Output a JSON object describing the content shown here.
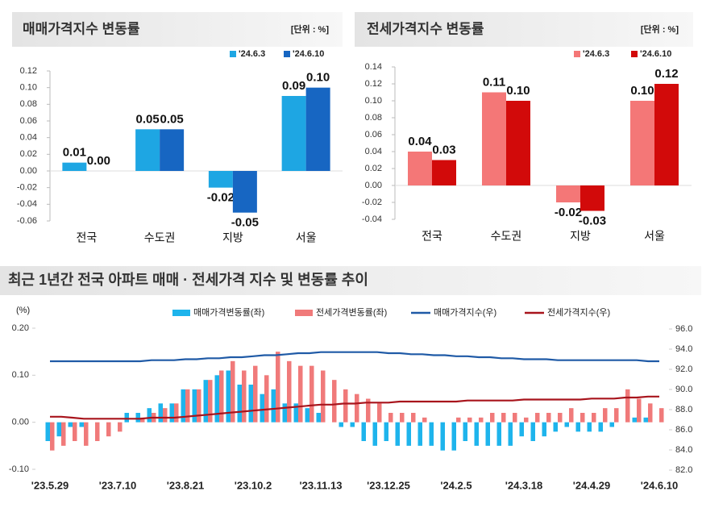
{
  "chart_data": [
    {
      "type": "bar",
      "title": "매매가격지수 변동률",
      "unit": "[단위 : %]",
      "categories": [
        "전국",
        "수도권",
        "지방",
        "서울"
      ],
      "series": [
        {
          "name": "'24.6.3",
          "color": "#1ea6e3",
          "values": [
            0.01,
            0.05,
            -0.02,
            0.09
          ],
          "value_labels": [
            "0.01",
            "0.05",
            "-0.02",
            "0.09"
          ]
        },
        {
          "name": "'24.6.10",
          "color": "#1766c2",
          "values": [
            0,
            0.05,
            -0.05,
            0.1
          ],
          "value_labels": [
            "0.00",
            "0.05",
            "-0.05",
            "0.10"
          ]
        }
      ],
      "ylim": [
        -0.06,
        0.12
      ],
      "yticks": [
        0.12,
        {
          "value": 0.1,
          "label": "0.10"
        },
        0.08,
        0.06,
        0.04,
        0.02,
        {
          "value": 0,
          "label": "0.00"
        },
        -0.02,
        -0.04,
        -0.06
      ],
      "legend": "top-right"
    },
    {
      "type": "bar",
      "title": "전세가격지수 변동률",
      "unit": "[단위 : %]",
      "categories": [
        "전국",
        "수도권",
        "지방",
        "서울"
      ],
      "series": [
        {
          "name": "'24.6.3",
          "color": "#f47777",
          "values": [
            0.04,
            0.11,
            -0.02,
            0.1
          ],
          "value_labels": [
            "0.04",
            "0.11",
            "-0.02",
            "0.10"
          ]
        },
        {
          "name": "'24.6.10",
          "color": "#d20a0a",
          "values": [
            0.03,
            0.1,
            -0.03,
            0.12
          ],
          "value_labels": [
            "0.03",
            "0.10",
            "-0.03",
            "0.12"
          ]
        }
      ],
      "ylim": [
        -0.04,
        0.14
      ],
      "yticks": [
        0.14,
        0.12,
        {
          "value": 0.1,
          "label": "0.10"
        },
        0.08,
        0.06,
        0.04,
        0.02,
        {
          "value": 0,
          "label": "0.00"
        },
        -0.02,
        -0.04
      ],
      "legend": "top-right"
    },
    {
      "type": "bar-line",
      "title": "최근 1년간 전국 아파트 매매 · 전세가격 지수 및 변동률 추이",
      "ylabel": "(%)",
      "categories": [
        "'23.5.29",
        null,
        null,
        null,
        null,
        null,
        "'23.7.10",
        null,
        null,
        null,
        null,
        null,
        "'23.8.21",
        null,
        null,
        null,
        null,
        null,
        "'23.10.2",
        null,
        null,
        null,
        null,
        null,
        "'23.11.13",
        null,
        null,
        null,
        null,
        null,
        "'23.12.25",
        null,
        null,
        null,
        null,
        null,
        "'24.2.5",
        null,
        null,
        null,
        null,
        null,
        "'24.3.18",
        null,
        null,
        null,
        null,
        null,
        "'24.4.29",
        null,
        null,
        null,
        null,
        null,
        "'24.6.10"
      ],
      "series": [
        {
          "name": "매매가격변동률(좌)",
          "color": "#1eb4ec",
          "kind": "bar",
          "values": [
            -0.04,
            -0.03,
            -0.01,
            -0.01,
            0,
            0,
            0,
            0.02,
            0.02,
            0.03,
            0.04,
            0.04,
            0.07,
            0.07,
            0.09,
            0.1,
            0.11,
            0.08,
            0.08,
            0.06,
            0.07,
            0.04,
            0.04,
            0.03,
            0.02,
            0,
            -0.01,
            -0.01,
            -0.04,
            -0.05,
            -0.04,
            -0.05,
            -0.05,
            -0.05,
            -0.05,
            -0.06,
            -0.06,
            -0.04,
            -0.05,
            -0.05,
            -0.05,
            -0.05,
            -0.03,
            -0.04,
            -0.03,
            -0.02,
            -0.01,
            -0.02,
            -0.02,
            -0.02,
            -0.01,
            0,
            0.01,
            0.01,
            0
          ]
        },
        {
          "name": "전세가격변동률(좌)",
          "color": "#f07a7a",
          "kind": "bar",
          "values": [
            -0.06,
            -0.05,
            -0.04,
            -0.05,
            -0.04,
            -0.03,
            -0.02,
            0,
            0.01,
            0.02,
            0.03,
            0.04,
            0.07,
            0.07,
            0.09,
            0.11,
            0.13,
            0.11,
            0.12,
            0.1,
            0.15,
            0.13,
            0.12,
            0.12,
            0.11,
            0.09,
            0.07,
            0.06,
            0.05,
            0.04,
            0.02,
            0.02,
            0.02,
            0.01,
            0,
            0,
            0.01,
            0.01,
            0.01,
            0.02,
            0.02,
            0.02,
            0.01,
            0.02,
            0.02,
            0.02,
            0.03,
            0.02,
            0.02,
            0.03,
            0.03,
            0.07,
            0.05,
            0.04,
            0.03
          ]
        },
        {
          "name": "매매가격지수(우)",
          "color": "#1f5aa6",
          "kind": "line",
          "axis": "y2",
          "values": [
            92.8,
            92.8,
            92.8,
            92.8,
            92.8,
            92.8,
            92.8,
            92.8,
            92.8,
            92.9,
            92.9,
            92.9,
            93.0,
            93.0,
            93.1,
            93.1,
            93.2,
            93.2,
            93.3,
            93.4,
            93.4,
            93.5,
            93.6,
            93.6,
            93.7,
            93.7,
            93.7,
            93.7,
            93.7,
            93.7,
            93.6,
            93.6,
            93.5,
            93.5,
            93.4,
            93.4,
            93.3,
            93.3,
            93.2,
            93.2,
            93.1,
            93.1,
            93.0,
            93.0,
            93.0,
            92.9,
            92.9,
            92.9,
            92.9,
            92.9,
            92.9,
            92.9,
            92.9,
            92.8,
            92.8
          ]
        },
        {
          "name": "전세가격지수(우)",
          "color": "#a8141c",
          "kind": "line",
          "axis": "y2",
          "values": [
            87.3,
            87.3,
            87.2,
            87.1,
            87.1,
            87.1,
            87.1,
            87.1,
            87.1,
            87.2,
            87.2,
            87.2,
            87.3,
            87.4,
            87.5,
            87.6,
            87.7,
            87.8,
            87.9,
            88.0,
            88.1,
            88.2,
            88.3,
            88.4,
            88.5,
            88.5,
            88.6,
            88.6,
            88.7,
            88.7,
            88.7,
            88.8,
            88.8,
            88.8,
            88.8,
            88.8,
            88.8,
            88.9,
            88.9,
            88.9,
            88.9,
            88.9,
            89.0,
            89.0,
            89.0,
            89.0,
            89.0,
            89.0,
            89.1,
            89.1,
            89.1,
            89.2,
            89.2,
            89.3,
            89.3
          ]
        }
      ],
      "ylim": [
        -0.1,
        0.2
      ],
      "yticks": [
        {
          "value": -0.1,
          "label": "-0.10"
        },
        {
          "value": 0,
          "label": "0.00"
        },
        {
          "value": 0.1,
          "label": "0.10"
        },
        {
          "value": 0.2,
          "label": "0.20"
        }
      ],
      "y2lim": [
        82,
        96
      ],
      "y2ticks": [
        {
          "value": 82,
          "label": "82.0"
        },
        {
          "value": 84,
          "label": "84.0"
        },
        {
          "value": 86,
          "label": "86.0"
        },
        {
          "value": 88,
          "label": "88.0"
        },
        {
          "value": 90,
          "label": "90.0"
        },
        {
          "value": 92,
          "label": "92.0"
        },
        {
          "value": 94,
          "label": "94.0"
        },
        {
          "value": 96,
          "label": "96.0"
        }
      ],
      "legend": "top"
    }
  ]
}
